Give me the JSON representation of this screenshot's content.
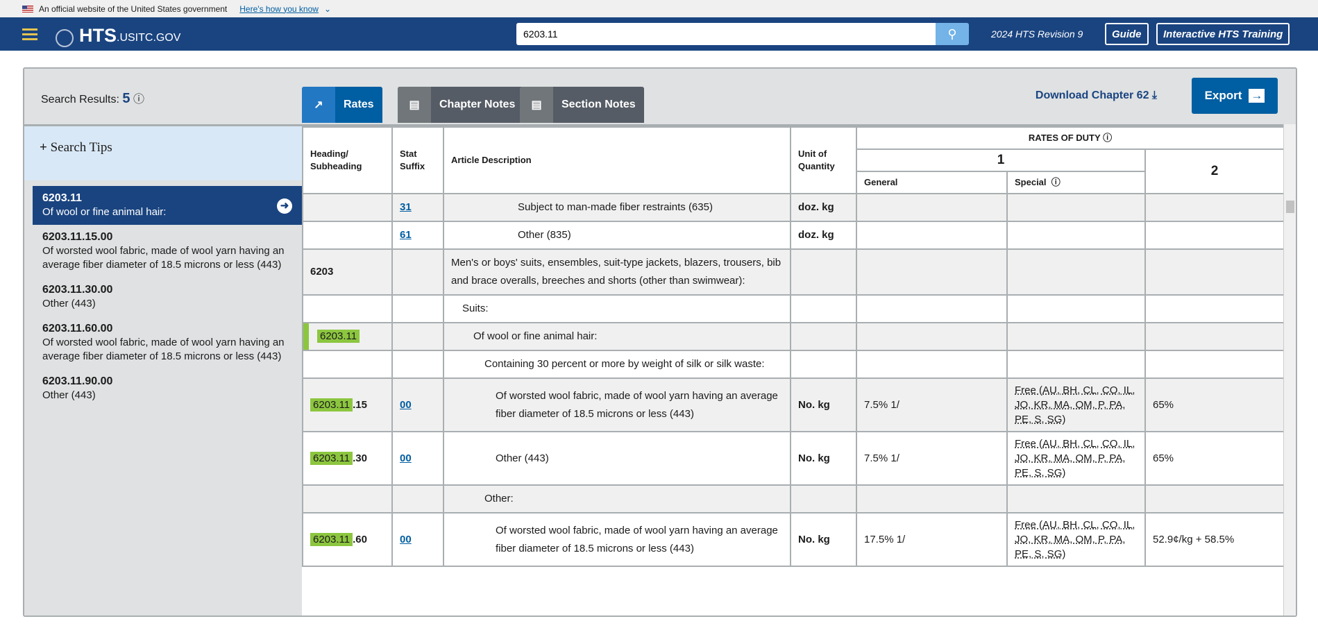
{
  "banner": {
    "text": "An official website of the United States government",
    "link": "Here's how you know"
  },
  "nav": {
    "logo_main": "HTS",
    "logo_sub": ".USITC.GOV",
    "search_value": "6203.11",
    "revision": "2024 HTS Revision 9",
    "guide": "Guide",
    "training": "Interactive HTS Training"
  },
  "panel": {
    "search_results_label": "Search Results:",
    "search_results_count": "5",
    "tabs": [
      "Rates",
      "Chapter Notes",
      "Section Notes"
    ],
    "download": "Download Chapter 62",
    "export": "Export"
  },
  "sidebar": {
    "tips": "Search Tips",
    "results": [
      {
        "code": "6203.11",
        "desc": "Of wool or fine animal hair:"
      },
      {
        "code": "6203.11.15.00",
        "desc": "Of worsted wool fabric, made of wool yarn having an average fiber diameter of 18.5 microns or less (443)"
      },
      {
        "code": "6203.11.30.00",
        "desc": "Other (443)"
      },
      {
        "code": "6203.11.60.00",
        "desc": "Of worsted wool fabric, made of wool yarn having an average fiber diameter of 18.5 microns or less (443)"
      },
      {
        "code": "6203.11.90.00",
        "desc": "Other (443)"
      }
    ]
  },
  "table": {
    "headers": {
      "heading": "Heading/ Subheading",
      "stat": "Stat Suffix",
      "desc": "Article Description",
      "unit": "Unit of Quantity",
      "rates": "RATES OF DUTY",
      "col1": "1",
      "col2": "2",
      "general": "General",
      "special": "Special"
    },
    "rows": [
      {
        "heading": "",
        "hl": "",
        "stat": "31",
        "desc": "Subject to man-made fiber restraints (635)",
        "indent": 6,
        "unit": "doz. kg",
        "general": "",
        "special": "",
        "col2": ""
      },
      {
        "heading": "",
        "hl": "",
        "stat": "61",
        "desc": "Other (835)",
        "indent": 6,
        "unit": "doz. kg",
        "general": "",
        "special": "",
        "col2": ""
      },
      {
        "heading": "6203",
        "hl": "",
        "stat": "",
        "desc": "Men's or boys' suits, ensembles, suit-type jackets, blazers, trousers, bib and brace overalls, breeches and shorts (other than swimwear):",
        "indent": 0,
        "unit": "",
        "general": "",
        "special": "",
        "col2": ""
      },
      {
        "heading": "",
        "hl": "",
        "stat": "",
        "desc": "Suits:",
        "indent": 1,
        "unit": "",
        "general": "",
        "special": "",
        "col2": ""
      },
      {
        "heading": "",
        "hl": "6203.11",
        "stat": "",
        "desc": "Of wool or fine animal hair:",
        "indent": 2,
        "unit": "",
        "general": "",
        "special": "",
        "col2": ""
      },
      {
        "heading": "",
        "hl": "",
        "stat": "",
        "desc": "Containing 30 percent or more by weight of silk or silk waste:",
        "indent": 3,
        "unit": "",
        "general": "",
        "special": "",
        "col2": ""
      },
      {
        "heading": ".15",
        "hl": "6203.11",
        "stat": "00",
        "desc": "Of worsted wool fabric, made of wool yarn having an average fiber diameter of 18.5 microns or less (443)",
        "indent": 4,
        "unit": "No. kg",
        "general": "7.5% 1/",
        "special": "Free (AU, BH, CL, CO, IL, JO, KR, MA, OM, P, PA, PE, S, SG)",
        "col2": "65%"
      },
      {
        "heading": ".30",
        "hl": "6203.11",
        "stat": "00",
        "desc": "Other (443)",
        "indent": 4,
        "unit": "No. kg",
        "general": "7.5% 1/",
        "special": "Free (AU, BH, CL, CO, IL, JO, KR, MA, OM, P, PA, PE, S, SG)",
        "col2": "65%"
      },
      {
        "heading": "",
        "hl": "",
        "stat": "",
        "desc": "Other:",
        "indent": 3,
        "unit": "",
        "general": "",
        "special": "",
        "col2": ""
      },
      {
        "heading": ".60",
        "hl": "6203.11",
        "stat": "00",
        "desc": "Of worsted wool fabric, made of wool yarn having an average fiber diameter of 18.5 microns or less (443)",
        "indent": 4,
        "unit": "No. kg",
        "general": "17.5% 1/",
        "special": "Free (AU, BH, CL, CO, IL, JO, KR, MA, OM, P, PA, PE, S, SG)",
        "col2": "52.9¢/kg + 58.5%"
      }
    ]
  }
}
